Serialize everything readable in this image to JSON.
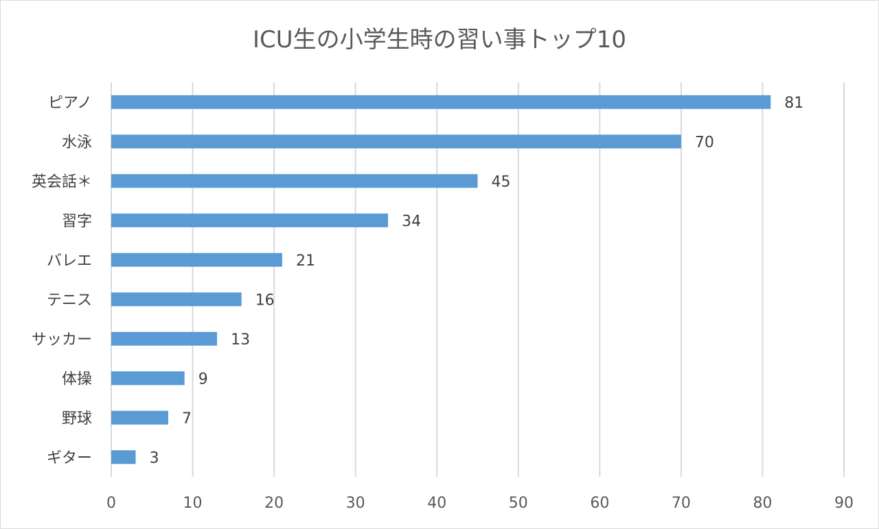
{
  "chart_data": {
    "type": "bar",
    "orientation": "horizontal",
    "title": "ICU生の小学生時の習い事トップ10",
    "xlabel": "",
    "ylabel": "",
    "categories": [
      "ピアノ",
      "水泳",
      "英会話＊",
      "習字",
      "バレエ",
      "テニス",
      "サッカー",
      "体操",
      "野球",
      "ギター"
    ],
    "values": [
      81,
      70,
      45,
      34,
      21,
      16,
      13,
      9,
      7,
      3
    ],
    "xlim": [
      0,
      90
    ],
    "xticks": [
      0,
      10,
      20,
      30,
      40,
      50,
      60,
      70,
      80,
      90
    ],
    "grid": true,
    "legend": "none",
    "bar_color": "#5b9bd5",
    "data_labels": true
  }
}
